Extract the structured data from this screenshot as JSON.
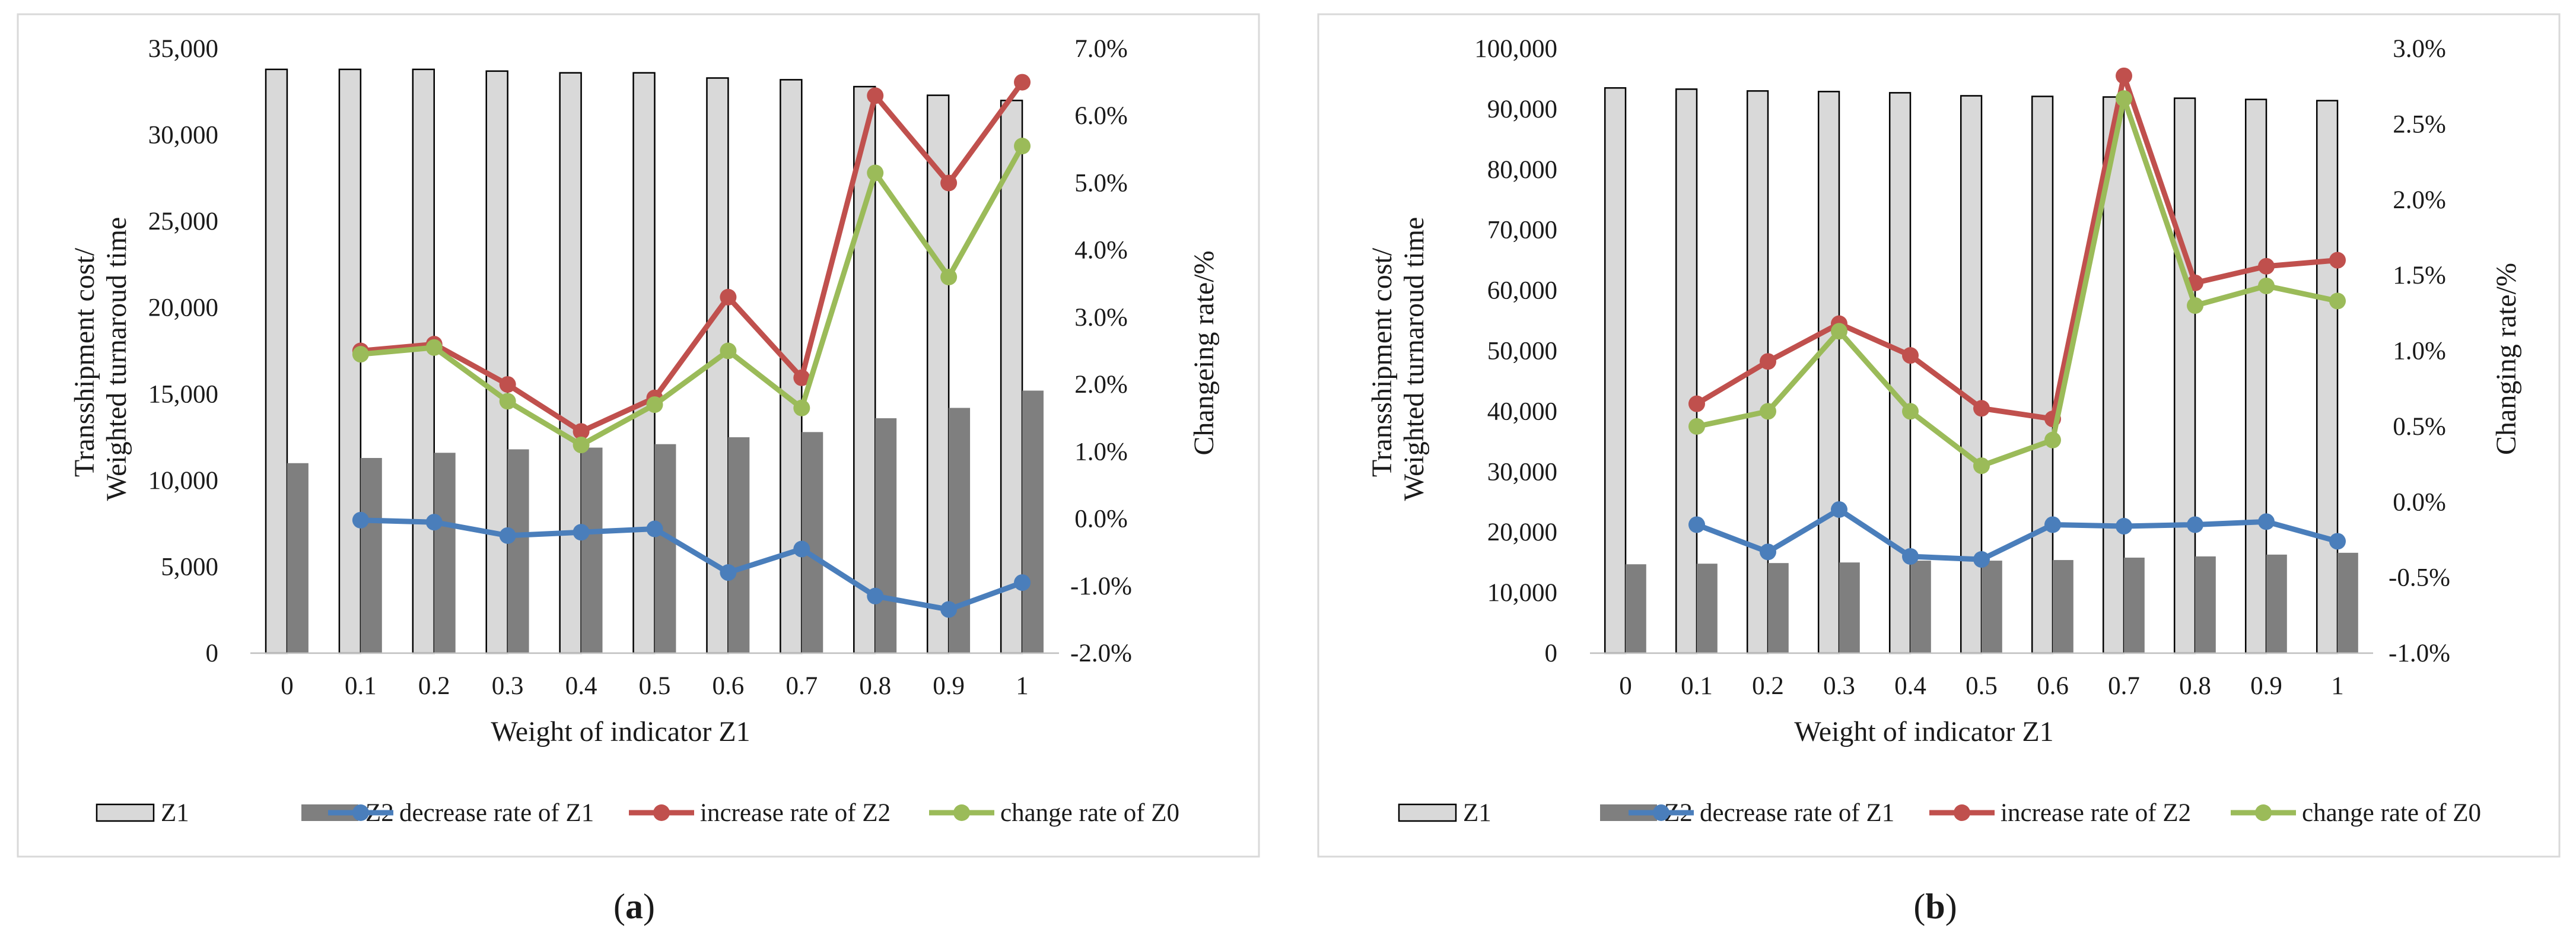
{
  "chart_data": [
    {
      "type": "bar",
      "panel_label": "a",
      "categories": [
        "0",
        "0.1",
        "0.2",
        "0.3",
        "0.4",
        "0.5",
        "0.6",
        "0.7",
        "0.8",
        "0.9",
        "1"
      ],
      "xlabel": "Weight of indicator Z1",
      "ylabel_lines": [
        "Transshipment cost/",
        "Weighted turnaroud time"
      ],
      "y2label": "Changeing rate/%",
      "ylim": [
        0,
        35000
      ],
      "yticks": [
        0,
        5000,
        10000,
        15000,
        20000,
        25000,
        30000,
        35000
      ],
      "ytick_labels": [
        "0",
        "5,000",
        "10,000",
        "15,000",
        "20,000",
        "25,000",
        "30,000",
        "35,000"
      ],
      "y2lim": [
        -2.0,
        7.0
      ],
      "y2ticks": [
        -2.0,
        -1.0,
        0.0,
        1.0,
        2.0,
        3.0,
        4.0,
        5.0,
        6.0,
        7.0
      ],
      "y2tick_labels": [
        "-2.0%",
        "-1.0%",
        "0.0%",
        "1.0%",
        "2.0%",
        "3.0%",
        "4.0%",
        "5.0%",
        "6.0%",
        "7.0%"
      ],
      "bar_series": [
        {
          "name": "Z1",
          "color": "#d9d9d9",
          "values": [
            33800,
            33800,
            33800,
            33700,
            33600,
            33600,
            33300,
            33200,
            32800,
            32300,
            32000
          ]
        },
        {
          "name": "Z2",
          "color": "#7f7f7f",
          "values": [
            11000,
            11300,
            11600,
            11800,
            11900,
            12100,
            12500,
            12800,
            13600,
            14200,
            15200
          ]
        }
      ],
      "line_series": [
        {
          "name": "decrease rate of Z1",
          "color": "#4a7ebb",
          "values": [
            null,
            -0.02,
            -0.05,
            -0.25,
            -0.2,
            -0.15,
            -0.8,
            -0.45,
            -1.15,
            -1.35,
            -0.95
          ]
        },
        {
          "name": "increase rate of Z2",
          "color": "#c0504d",
          "values": [
            null,
            2.5,
            2.6,
            2.0,
            1.3,
            1.8,
            3.3,
            2.1,
            6.3,
            5.0,
            6.5
          ]
        },
        {
          "name": "change rate of Z0",
          "color": "#9bbb59",
          "values": [
            null,
            2.45,
            2.55,
            1.75,
            1.1,
            1.7,
            2.5,
            1.65,
            5.15,
            3.6,
            5.55
          ]
        }
      ]
    },
    {
      "type": "bar",
      "panel_label": "b",
      "categories": [
        "0",
        "0.1",
        "0.2",
        "0.3",
        "0.4",
        "0.5",
        "0.6",
        "0.7",
        "0.8",
        "0.9",
        "1"
      ],
      "xlabel": "Weight of indicator Z1",
      "ylabel_lines": [
        "Transshipment cost/",
        "Weighted turnaroud time"
      ],
      "y2label": "Changing rate/%",
      "ylim": [
        0,
        100000
      ],
      "yticks": [
        0,
        10000,
        20000,
        30000,
        40000,
        50000,
        60000,
        70000,
        80000,
        90000,
        100000
      ],
      "ytick_labels": [
        "0",
        "10,000",
        "20,000",
        "30,000",
        "40,000",
        "50,000",
        "60,000",
        "70,000",
        "80,000",
        "90,000",
        "100,000"
      ],
      "y2lim": [
        -1.0,
        3.0
      ],
      "y2ticks": [
        -1.0,
        -0.5,
        0.0,
        0.5,
        1.0,
        1.5,
        2.0,
        2.5,
        3.0
      ],
      "y2tick_labels": [
        "-1.0%",
        "-0.5%",
        "0.0%",
        "0.5%",
        "1.0%",
        "1.5%",
        "2.0%",
        "2.5%",
        "3.0%"
      ],
      "bar_series": [
        {
          "name": "Z1",
          "color": "#d9d9d9",
          "values": [
            93500,
            93300,
            93000,
            92900,
            92700,
            92200,
            92100,
            92000,
            91800,
            91600,
            91400
          ]
        },
        {
          "name": "Z2",
          "color": "#7f7f7f",
          "values": [
            14700,
            14800,
            14900,
            15000,
            15300,
            15300,
            15400,
            15800,
            16000,
            16300,
            16600
          ]
        }
      ],
      "line_series": [
        {
          "name": "decrease rate of Z1",
          "color": "#4a7ebb",
          "values": [
            null,
            -0.15,
            -0.33,
            -0.05,
            -0.36,
            -0.38,
            -0.15,
            -0.16,
            -0.15,
            -0.13,
            -0.26
          ]
        },
        {
          "name": "increase rate of Z2",
          "color": "#c0504d",
          "values": [
            null,
            0.65,
            0.93,
            1.18,
            0.97,
            0.62,
            0.55,
            2.82,
            1.45,
            1.56,
            1.6
          ]
        },
        {
          "name": "change rate of Z0",
          "color": "#9bbb59",
          "values": [
            null,
            0.5,
            0.6,
            1.13,
            0.6,
            0.24,
            0.41,
            2.67,
            1.3,
            1.43,
            1.33
          ]
        }
      ]
    }
  ]
}
